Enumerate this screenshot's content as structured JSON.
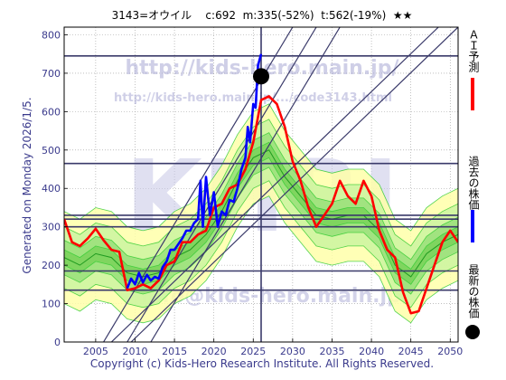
{
  "header": {
    "text": "3143=オウイル    c:692  m:335(-52%)  t:562(-19%)  ★★"
  },
  "side_note": "Generated on Monday 2026/1/5.",
  "footer": "Copyright (c) Kids-Hero Research Institute. All Rights Reserved.",
  "watermarks": {
    "url": "http://kids-hero.main.jp/",
    "page_url": "http://kids-hero.main.jp/.../code3143.html",
    "center": "KHRI",
    "mail": "info@kids-hero.main.jp"
  },
  "legend": {
    "ai": "ＡＩ予測",
    "past": "過去の株価",
    "latest": "最新の株価"
  },
  "colors": {
    "ai": "#ff0000",
    "past": "#0000ff",
    "latest": "#000000",
    "band": "#33cc33",
    "band_fill": "#ccf5a0",
    "outer_fill": "#ffffaa",
    "hline": "#3a3a6a",
    "axis_text": "#3a3a8c"
  },
  "chart_data": {
    "type": "line",
    "xlim": [
      2001,
      2051
    ],
    "ylim": [
      0,
      820
    ],
    "x_ticks": [
      2005,
      2010,
      2015,
      2020,
      2025,
      2030,
      2035,
      2040,
      2045,
      2050
    ],
    "y_ticks": [
      0,
      100,
      200,
      300,
      400,
      500,
      600,
      700,
      800
    ],
    "hlines": [
      745,
      465,
      330,
      320,
      300,
      185,
      135
    ],
    "vline_x": 2026,
    "latest_point": {
      "x": 2026,
      "y": 692
    },
    "past_price": {
      "x": [
        2009.0,
        2009.5,
        2010.0,
        2010.5,
        2011.0,
        2011.5,
        2012.0,
        2012.5,
        2013.0,
        2013.5,
        2014.0,
        2014.5,
        2015.0,
        2015.5,
        2016.0,
        2016.5,
        2017.0,
        2017.5,
        2018.0,
        2018.3,
        2018.6,
        2019.0,
        2019.5,
        2020.0,
        2020.5,
        2021.0,
        2021.5,
        2022.0,
        2022.5,
        2023.0,
        2023.5,
        2024.0,
        2024.3,
        2024.6,
        2025.0,
        2025.3,
        2025.6,
        2026.0
      ],
      "y": [
        140,
        165,
        150,
        180,
        155,
        175,
        160,
        170,
        165,
        195,
        210,
        240,
        240,
        255,
        270,
        290,
        290,
        310,
        320,
        420,
        300,
        430,
        330,
        390,
        300,
        340,
        330,
        370,
        365,
        400,
        450,
        480,
        560,
        520,
        620,
        610,
        720,
        750
      ]
    },
    "ai_forecast": {
      "x": [
        2001,
        2002,
        2003,
        2004,
        2005,
        2006,
        2007,
        2008,
        2009,
        2010,
        2011,
        2012,
        2013,
        2014,
        2015,
        2016,
        2017,
        2018,
        2019,
        2020,
        2021,
        2022,
        2023,
        2024,
        2025,
        2026,
        2027,
        2028,
        2029,
        2030,
        2031,
        2032,
        2033,
        2034,
        2035,
        2036,
        2037,
        2038,
        2039,
        2040,
        2041,
        2042,
        2043,
        2044,
        2045,
        2046,
        2047,
        2048,
        2049,
        2050,
        2051
      ],
      "y": [
        320,
        260,
        250,
        270,
        295,
        265,
        240,
        235,
        135,
        140,
        150,
        140,
        160,
        200,
        210,
        260,
        260,
        280,
        290,
        350,
        360,
        400,
        410,
        450,
        520,
        630,
        640,
        620,
        560,
        470,
        420,
        350,
        300,
        330,
        360,
        420,
        380,
        360,
        420,
        380,
        290,
        240,
        220,
        130,
        75,
        80,
        140,
        200,
        260,
        290,
        260
      ]
    },
    "band_center": {
      "x": [
        2001,
        2003,
        2005,
        2007,
        2009,
        2011,
        2013,
        2015,
        2017,
        2019,
        2021,
        2023,
        2025,
        2027,
        2029,
        2031,
        2033,
        2035,
        2037,
        2039,
        2041,
        2043,
        2045,
        2047,
        2049,
        2051
      ],
      "y": [
        220,
        200,
        230,
        220,
        180,
        170,
        180,
        220,
        240,
        280,
        340,
        420,
        480,
        500,
        430,
        380,
        330,
        320,
        330,
        330,
        290,
        200,
        170,
        230,
        260,
        280
      ]
    },
    "band_widths": [
      120,
      80,
      45,
      20
    ],
    "trend_lines": [
      {
        "from": [
          2007,
          0
        ],
        "to": [
          2048.5,
          820
        ]
      },
      {
        "from": [
          2009.5,
          0
        ],
        "to": [
          2051,
          820
        ]
      },
      {
        "from": [
          2006,
          0
        ],
        "to": [
          2030,
          820
        ]
      },
      {
        "from": [
          2009,
          0
        ],
        "to": [
          2033,
          820
        ]
      },
      {
        "from": [
          2012,
          0
        ],
        "to": [
          2036,
          820
        ]
      }
    ]
  }
}
